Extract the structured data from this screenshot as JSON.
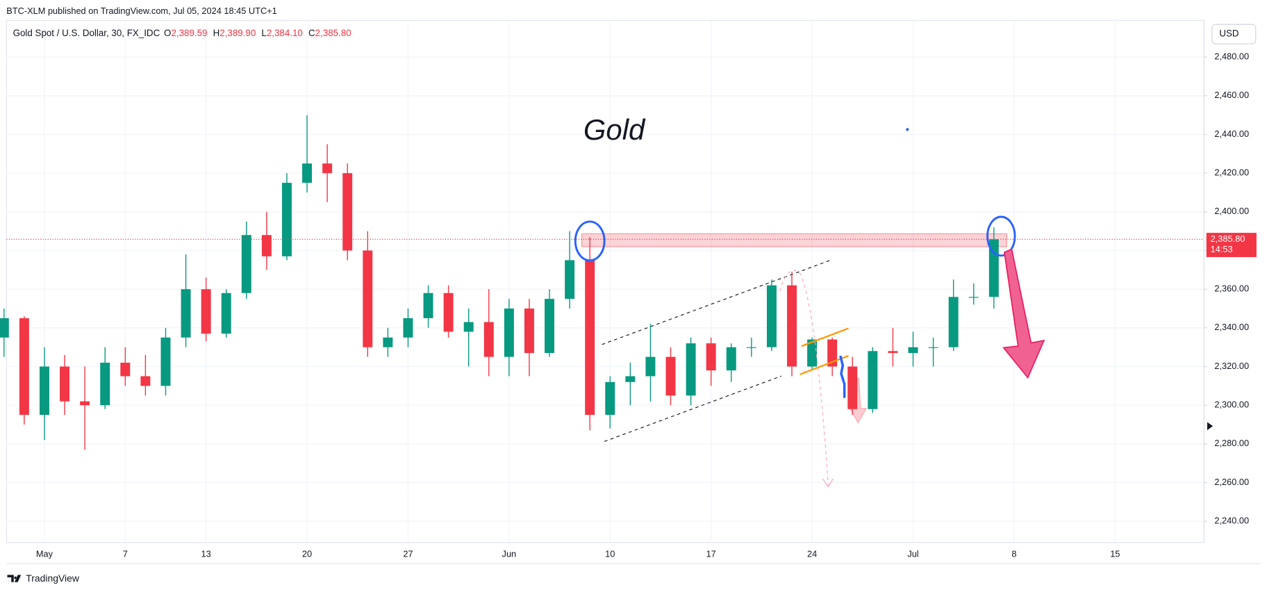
{
  "header": "BTC-XLM published on TradingView.com, Jul 05, 2024 18:45 UTC+1",
  "footer": "TradingView",
  "currency": "USD",
  "chart_data": {
    "type": "candlestick",
    "title": "Gold Spot / U.S. Dollar, 30, FX_IDC",
    "ohlc_legend": [
      {
        "label": "O",
        "value": "2,389.59"
      },
      {
        "label": "H",
        "value": "2,389.90"
      },
      {
        "label": "L",
        "value": "2,384.10"
      },
      {
        "label": "C",
        "value": "2,385.80"
      }
    ],
    "annotation": "Gold",
    "categories": [
      null,
      null,
      "May",
      null,
      null,
      null,
      "7",
      null,
      null,
      null,
      "13",
      null,
      null,
      null,
      null,
      "20",
      null,
      null,
      null,
      null,
      "27",
      null,
      null,
      null,
      null,
      "Jun",
      null,
      null,
      null,
      null,
      "10",
      null,
      null,
      null,
      null,
      "17",
      null,
      null,
      null,
      null,
      "24",
      null,
      null,
      null,
      null,
      "Jul",
      null,
      null,
      null,
      null,
      "8",
      null,
      null,
      null,
      null,
      "15",
      null,
      null,
      null,
      null
    ],
    "open": [
      2335,
      2345,
      2295,
      2320,
      2302,
      2300,
      2322,
      2315,
      2310,
      2335,
      2360,
      2337,
      2358,
      2388,
      2377,
      2415,
      2425,
      2420,
      2380,
      2330,
      2335,
      2345,
      2358,
      2338,
      2343,
      2325,
      2350,
      2327,
      2355,
      2375,
      2295,
      2312,
      2315,
      2325,
      2305,
      2332,
      2318,
      2330,
      2330,
      2362,
      2320,
      2334,
      2320,
      2298,
      2328,
      2327,
      2330,
      2330,
      2356,
      2356,
      null,
      null,
      null,
      null,
      null,
      null,
      null,
      null,
      null,
      null
    ],
    "high": [
      2350,
      2346,
      2330,
      2326,
      2320,
      2330,
      2330,
      2326,
      2340,
      2378,
      2366,
      2360,
      2395,
      2400,
      2420,
      2450,
      2435,
      2425,
      2390,
      2340,
      2350,
      2362,
      2362,
      2350,
      2360,
      2355,
      2355,
      2360,
      2390,
      2387,
      2315,
      2322,
      2342,
      2330,
      2335,
      2335,
      2332,
      2335,
      2365,
      2369,
      2335,
      2335,
      2325,
      2330,
      2340,
      2338,
      2335,
      2365,
      2363,
      2392,
      null,
      null,
      null,
      null,
      null,
      null,
      null,
      null,
      null,
      null
    ],
    "low": [
      2325,
      2290,
      2282,
      2295,
      2277,
      2298,
      2310,
      2305,
      2305,
      2330,
      2333,
      2335,
      2355,
      2370,
      2375,
      2410,
      2405,
      2375,
      2325,
      2325,
      2330,
      2340,
      2335,
      2320,
      2315,
      2315,
      2315,
      2325,
      2350,
      2287,
      2288,
      2300,
      2302,
      2300,
      2300,
      2310,
      2312,
      2325,
      2328,
      2315,
      2318,
      2315,
      2295,
      2296,
      2320,
      2320,
      2320,
      2328,
      2352,
      2350,
      null,
      null,
      null,
      null,
      null,
      null,
      null,
      null,
      null,
      null
    ],
    "close": [
      2345,
      2295,
      2320,
      2302,
      2300,
      2322,
      2315,
      2310,
      2335,
      2360,
      2337,
      2358,
      2388,
      2377,
      2415,
      2425,
      2420,
      2380,
      2330,
      2335,
      2345,
      2358,
      2338,
      2343,
      2325,
      2350,
      2327,
      2355,
      2375,
      2295,
      2312,
      2315,
      2325,
      2305,
      2332,
      2318,
      2330,
      2330,
      2362,
      2320,
      2334,
      2320,
      2298,
      2328,
      2327,
      2330,
      2330,
      2356,
      2356,
      2385.8,
      null,
      null,
      null,
      null,
      null,
      null,
      null,
      null,
      null,
      null
    ],
    "up_color": "#089981",
    "down_color": "#f23645",
    "ylim": [
      2229,
      2499
    ],
    "yticks": [
      {
        "value": 2240,
        "label": "2,240.00"
      },
      {
        "value": 2260,
        "label": "2,260.00"
      },
      {
        "value": 2280,
        "label": "2,280.00"
      },
      {
        "value": 2300,
        "label": "2,300.00"
      },
      {
        "value": 2320,
        "label": "2,320.00"
      },
      {
        "value": 2340,
        "label": "2,340.00"
      },
      {
        "value": 2360,
        "label": "2,360.00"
      },
      {
        "value": 2380,
        "label": "2,380.00"
      },
      {
        "value": 2400,
        "label": "2,400.00"
      },
      {
        "value": 2420,
        "label": "2,420.00"
      },
      {
        "value": 2440,
        "label": "2,440.00"
      },
      {
        "value": 2460,
        "label": "2,460.00"
      },
      {
        "value": 2480,
        "label": "2,480.00"
      }
    ],
    "last_price": {
      "value": 2385.8,
      "label": "2,385.80"
    },
    "countdown": "14:53",
    "grid": true
  }
}
